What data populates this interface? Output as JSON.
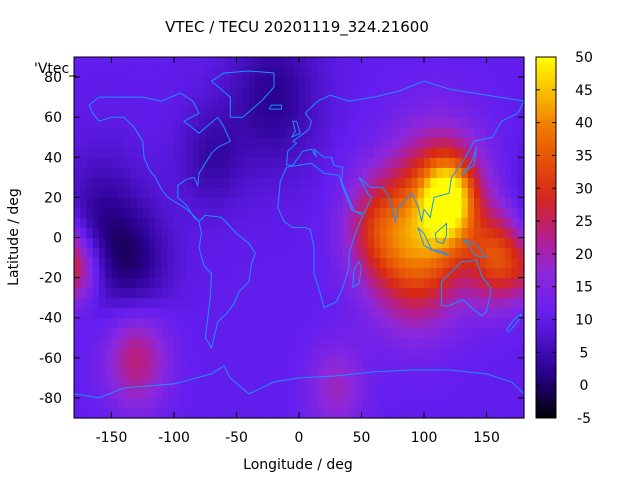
{
  "chart_data": {
    "type": "heatmap",
    "title": "VTEC / TECU 20201119_324.21600",
    "xlabel": "Longitude / deg",
    "ylabel": "Latitude / deg",
    "key_label": "'Vtec_",
    "xlim": [
      -180,
      180
    ],
    "ylim": [
      -90,
      90
    ],
    "xticks": [
      -150,
      -100,
      -50,
      0,
      50,
      100,
      150
    ],
    "yticks": [
      -80,
      -60,
      -40,
      -20,
      0,
      20,
      40,
      60,
      80
    ],
    "colorbar": {
      "range": [
        -5,
        50
      ],
      "ticks": [
        -5,
        0,
        5,
        10,
        15,
        20,
        25,
        30,
        35,
        40,
        45,
        50
      ],
      "palette": "black-blue-violet-red-orange-yellow"
    },
    "field_sources": [
      {
        "lon": -160,
        "lat": 5,
        "vtec": 2,
        "spread": 25
      },
      {
        "lon": -130,
        "lat": -15,
        "vtec": 3,
        "spread": 20
      },
      {
        "lon": -70,
        "lat": 40,
        "vtec": 4,
        "spread": 18
      },
      {
        "lon": -20,
        "lat": 70,
        "vtec": 2,
        "spread": 25
      },
      {
        "lon": 110,
        "lat": 15,
        "vtec": 31,
        "spread": 28
      },
      {
        "lon": 120,
        "lat": 20,
        "vtec": 36,
        "spread": 14
      },
      {
        "lon": 160,
        "lat": -10,
        "vtec": 32,
        "spread": 16
      },
      {
        "lon": 90,
        "lat": -10,
        "vtec": 27,
        "spread": 25
      },
      {
        "lon": 60,
        "lat": 5,
        "vtec": 22,
        "spread": 18
      },
      {
        "lon": -130,
        "lat": -60,
        "vtec": 24,
        "spread": 18
      },
      {
        "lon": -175,
        "lat": -15,
        "vtec": 22,
        "spread": 12
      },
      {
        "lon": 30,
        "lat": -75,
        "vtec": 19,
        "spread": 16
      }
    ],
    "background_vtec": 10
  },
  "colors": {
    "coast": "#1e90ff",
    "frame": "#000000"
  }
}
